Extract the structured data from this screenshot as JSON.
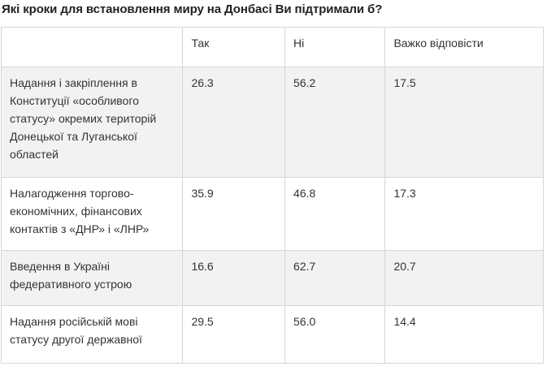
{
  "title": "Які кроки для встановлення миру на Донбасі Ви підтримали б?",
  "table": {
    "headers": [
      "",
      "Так",
      "Ні",
      "Важко відповісти"
    ],
    "rows": [
      {
        "question": "Надання і закріплення в Конституції «особливого статусу» окремих територій Донецької та Луганської областей",
        "yes": "26.3",
        "no": "56.2",
        "hard": "17.5"
      },
      {
        "question": "Налагодження торгово-економічних, фінансових контактів з «ДНР» і «ЛНР»",
        "yes": "35.9",
        "no": "46.8",
        "hard": "17.3"
      },
      {
        "question": "Введення в Україні федеративного устрою",
        "yes": "16.6",
        "no": "62.7",
        "hard": "20.7"
      },
      {
        "question": "Надання російській мові статусу другої державної",
        "yes": "29.5",
        "no": "56.0",
        "hard": "14.4"
      }
    ]
  }
}
